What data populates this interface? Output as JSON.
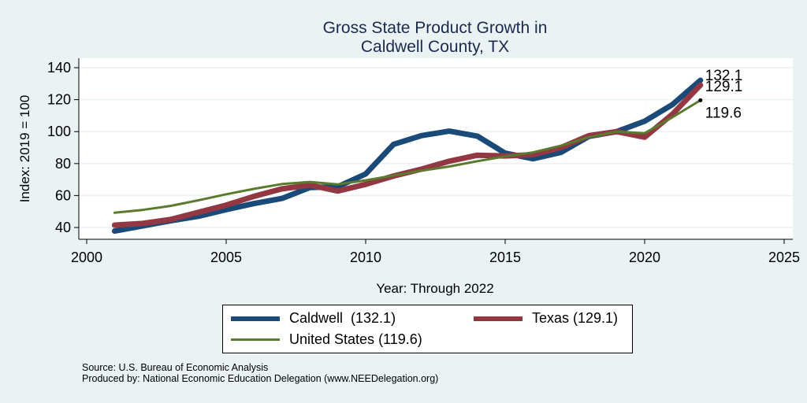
{
  "chart_data": {
    "type": "line",
    "title": [
      "Gross State Product Growth in",
      "Caldwell County, TX"
    ],
    "xlabel": "Year: Through 2022",
    "ylabel": "Index: 2019 = 100",
    "xlim": [
      2000,
      2025
    ],
    "ylim": [
      35,
      146
    ],
    "xticks": [
      2000,
      2005,
      2010,
      2015,
      2020,
      2025
    ],
    "yticks": [
      40,
      60,
      80,
      100,
      120,
      140
    ],
    "grid": true,
    "legend_position": "bottom",
    "x": [
      2001,
      2002,
      2003,
      2004,
      2005,
      2006,
      2007,
      2008,
      2009,
      2010,
      2011,
      2012,
      2013,
      2014,
      2015,
      2016,
      2017,
      2018,
      2019,
      2020,
      2021,
      2022
    ],
    "series": [
      {
        "name": "Caldwell",
        "legend_label": "Caldwell  (132.1)",
        "color": "#1a4a78",
        "end_label": "132.1",
        "values": [
          37.8,
          41.0,
          44.2,
          47.0,
          51.2,
          55.0,
          58.2,
          65.0,
          65.5,
          73.5,
          92.0,
          97.5,
          100.3,
          97.2,
          86.5,
          83.0,
          87.0,
          97.0,
          100.0,
          106.5,
          117.0,
          132.1
        ]
      },
      {
        "name": "Texas",
        "legend_label": "Texas (129.1)",
        "color": "#933843",
        "end_label": "129.1",
        "values": [
          41.5,
          42.5,
          45.0,
          49.5,
          54.0,
          59.5,
          64.2,
          66.5,
          62.8,
          67.0,
          72.2,
          76.5,
          81.5,
          85.2,
          84.8,
          85.5,
          90.0,
          97.5,
          100.0,
          96.5,
          111.0,
          129.1
        ]
      },
      {
        "name": "United States",
        "legend_label": "United States (119.6)",
        "color": "#5a7a2e",
        "end_label": "119.6",
        "values": [
          49.2,
          51.0,
          53.5,
          57.0,
          60.8,
          64.2,
          67.2,
          68.5,
          67.0,
          69.5,
          72.5,
          75.5,
          78.2,
          81.5,
          84.5,
          87.0,
          91.2,
          96.5,
          100.0,
          99.0,
          109.0,
          119.6
        ]
      }
    ],
    "source": "Source: U.S. Bureau of Economic Analysis",
    "produced_by": "Produced by: National Economic Education Delegation (www.NEEDelegation.org)"
  }
}
